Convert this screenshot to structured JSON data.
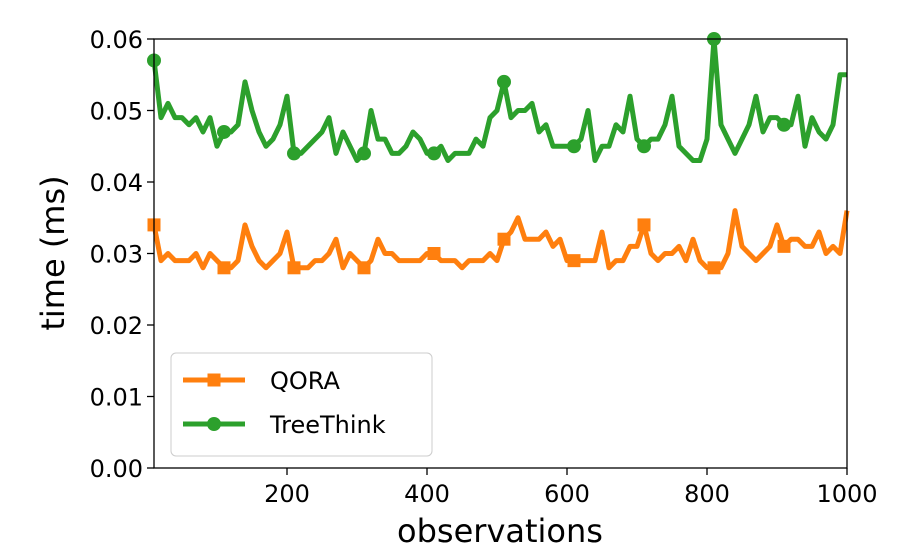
{
  "chart_data": {
    "type": "line",
    "xlabel": "observations",
    "ylabel": "time (ms)",
    "xlim": [
      10,
      1000
    ],
    "ylim": [
      0.0,
      0.06
    ],
    "xticks": [
      200,
      400,
      600,
      800,
      1000
    ],
    "xtick_labels": [
      "200",
      "400",
      "600",
      "800",
      "1000"
    ],
    "yticks": [
      0.0,
      0.01,
      0.02,
      0.03,
      0.04,
      0.05,
      0.06
    ],
    "ytick_labels": [
      "0.00",
      "0.01",
      "0.02",
      "0.03",
      "0.04",
      "0.05",
      "0.06"
    ],
    "grid": false,
    "legend_position": "lower-left",
    "marker_every_indices": [
      0,
      10,
      20,
      30,
      40,
      50,
      60,
      70,
      80,
      90
    ],
    "x": [
      10,
      20,
      30,
      40,
      50,
      60,
      70,
      80,
      90,
      100,
      110,
      120,
      130,
      140,
      150,
      160,
      170,
      180,
      190,
      200,
      210,
      220,
      230,
      240,
      250,
      260,
      270,
      280,
      290,
      300,
      310,
      320,
      330,
      340,
      350,
      360,
      370,
      380,
      390,
      400,
      410,
      420,
      430,
      440,
      450,
      460,
      470,
      480,
      490,
      500,
      510,
      520,
      530,
      540,
      550,
      560,
      570,
      580,
      590,
      600,
      610,
      620,
      630,
      640,
      650,
      660,
      670,
      680,
      690,
      700,
      710,
      720,
      730,
      740,
      750,
      760,
      770,
      780,
      790,
      800,
      810,
      820,
      830,
      840,
      850,
      860,
      870,
      880,
      890,
      900,
      910,
      920,
      930,
      940,
      950,
      960,
      970,
      980,
      990,
      1000
    ],
    "series": [
      {
        "name": "QORA",
        "color": "#ff7f0e",
        "marker": "square",
        "values": [
          0.034,
          0.029,
          0.03,
          0.029,
          0.029,
          0.029,
          0.03,
          0.028,
          0.03,
          0.029,
          0.028,
          0.028,
          0.029,
          0.034,
          0.031,
          0.029,
          0.028,
          0.029,
          0.03,
          0.033,
          0.028,
          0.028,
          0.028,
          0.029,
          0.029,
          0.03,
          0.032,
          0.028,
          0.03,
          0.029,
          0.028,
          0.029,
          0.032,
          0.03,
          0.03,
          0.029,
          0.029,
          0.029,
          0.029,
          0.03,
          0.03,
          0.029,
          0.029,
          0.029,
          0.028,
          0.029,
          0.029,
          0.029,
          0.03,
          0.029,
          0.032,
          0.033,
          0.035,
          0.032,
          0.032,
          0.032,
          0.033,
          0.031,
          0.032,
          0.029,
          0.029,
          0.029,
          0.029,
          0.029,
          0.033,
          0.028,
          0.029,
          0.029,
          0.031,
          0.031,
          0.034,
          0.03,
          0.029,
          0.03,
          0.03,
          0.031,
          0.029,
          0.032,
          0.029,
          0.028,
          0.028,
          0.028,
          0.03,
          0.036,
          0.031,
          0.03,
          0.029,
          0.03,
          0.031,
          0.034,
          0.031,
          0.032,
          0.032,
          0.031,
          0.031,
          0.033,
          0.03,
          0.031,
          0.03,
          0.036
        ]
      },
      {
        "name": "TreeThink",
        "color": "#2ca02c",
        "marker": "circle",
        "values": [
          0.057,
          0.049,
          0.051,
          0.049,
          0.049,
          0.048,
          0.049,
          0.047,
          0.049,
          0.045,
          0.047,
          0.047,
          0.048,
          0.054,
          0.05,
          0.047,
          0.045,
          0.046,
          0.048,
          0.052,
          0.044,
          0.044,
          0.045,
          0.046,
          0.047,
          0.049,
          0.044,
          0.047,
          0.045,
          0.043,
          0.044,
          0.05,
          0.046,
          0.046,
          0.044,
          0.044,
          0.045,
          0.047,
          0.046,
          0.044,
          0.044,
          0.045,
          0.043,
          0.044,
          0.044,
          0.044,
          0.046,
          0.045,
          0.049,
          0.05,
          0.054,
          0.049,
          0.05,
          0.05,
          0.051,
          0.047,
          0.048,
          0.045,
          0.045,
          0.045,
          0.045,
          0.046,
          0.05,
          0.043,
          0.045,
          0.045,
          0.048,
          0.047,
          0.052,
          0.046,
          0.045,
          0.046,
          0.046,
          0.048,
          0.052,
          0.045,
          0.044,
          0.043,
          0.043,
          0.046,
          0.06,
          0.048,
          0.046,
          0.044,
          0.046,
          0.048,
          0.052,
          0.047,
          0.049,
          0.049,
          0.048,
          0.048,
          0.052,
          0.045,
          0.049,
          0.047,
          0.046,
          0.048,
          0.055,
          0.055
        ]
      }
    ]
  }
}
